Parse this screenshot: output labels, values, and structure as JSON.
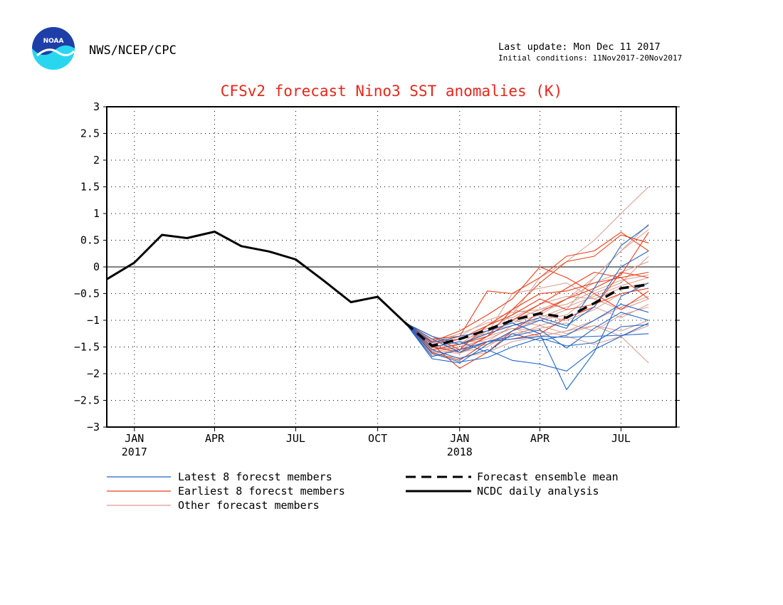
{
  "header": {
    "agency": "NWS/NCEP/CPC",
    "logo_text": "NOAA",
    "last_update": "Last update: Mon Dec 11 2017",
    "initial_conditions": "Initial conditions: 11Nov2017-20Nov2017"
  },
  "colors": {
    "title": "#e8251b",
    "latest": "#2166c8",
    "earliest": "#e8401b",
    "other": "#d99a8c",
    "analysis": "#000000",
    "ensemble_mean": "#000000",
    "grid": "#000000"
  },
  "chart_data": {
    "type": "line",
    "title": "CFSv2 forecast Nino3 SST anomalies (K)",
    "xlabel": "",
    "ylabel": "",
    "ylim": [
      -3,
      3
    ],
    "yticks": [
      3,
      2.5,
      2,
      1.5,
      1,
      0.5,
      0,
      -0.5,
      -1,
      -1.5,
      -2,
      -2.5,
      -3
    ],
    "ytick_labels": [
      "3",
      "2.5",
      "2",
      "1.5",
      "1",
      "0.5",
      "0",
      "−0.5",
      "−1",
      "−1.5",
      "−2",
      "−2.5",
      "−3"
    ],
    "xlim": [
      "2016-12-15",
      "2018-09-15"
    ],
    "xticks": [
      {
        "date": "2017-01-15",
        "label": "JAN",
        "year": "2017"
      },
      {
        "date": "2017-04-15",
        "label": "APR",
        "year": ""
      },
      {
        "date": "2017-07-15",
        "label": "JUL",
        "year": ""
      },
      {
        "date": "2017-10-15",
        "label": "OCT",
        "year": ""
      },
      {
        "date": "2018-01-15",
        "label": "JAN",
        "year": "2018"
      },
      {
        "date": "2018-04-15",
        "label": "APR",
        "year": ""
      },
      {
        "date": "2018-07-15",
        "label": "JUL",
        "year": ""
      }
    ],
    "grid": true,
    "zero_line": true,
    "legend": {
      "placement": "bottom",
      "entries": [
        {
          "label": "Latest 8 forecst members",
          "style": "latest"
        },
        {
          "label": "Earliest 8 forecst members",
          "style": "earliest"
        },
        {
          "label": "Other forecast members",
          "style": "other"
        },
        {
          "label": "Forecast ensemble mean",
          "style": "ensemble_mean"
        },
        {
          "label": "NCDC daily analysis",
          "style": "analysis"
        }
      ]
    },
    "forecast_dates": [
      "2017-11-15",
      "2017-12-15",
      "2018-01-15",
      "2018-02-15",
      "2018-03-15",
      "2018-04-15",
      "2018-05-15",
      "2018-06-15",
      "2018-07-15",
      "2018-08-15"
    ],
    "series": [
      {
        "name": "NCDC daily analysis",
        "style": "analysis",
        "x": [
          "2016-12-15",
          "2017-01-15",
          "2017-02-15",
          "2017-03-15",
          "2017-04-15",
          "2017-05-15",
          "2017-06-15",
          "2017-07-15",
          "2017-08-15",
          "2017-09-15",
          "2017-10-15",
          "2017-11-15"
        ],
        "y": [
          -0.23,
          0.08,
          0.6,
          0.54,
          0.66,
          0.39,
          0.29,
          0.14,
          -0.25,
          -0.66,
          -0.56,
          -1.05
        ]
      },
      {
        "name": "Forecast ensemble mean",
        "style": "ensemble_mean",
        "x": [
          "2017-11-15",
          "2017-12-15",
          "2018-01-15",
          "2018-02-15",
          "2018-03-15",
          "2018-04-15",
          "2018-05-15",
          "2018-06-15",
          "2018-07-15",
          "2018-08-15"
        ],
        "y": [
          -1.05,
          -1.48,
          -1.35,
          -1.18,
          -1.0,
          -0.87,
          -0.95,
          -0.68,
          -0.4,
          -0.33
        ]
      },
      {
        "name": "Latest 8 forecst members",
        "style": "latest",
        "members": [
          [
            -1.05,
            -1.68,
            -1.55,
            -1.4,
            -1.35,
            -1.3,
            -1.32,
            -1.3,
            -1.28,
            -1.25
          ],
          [
            -1.05,
            -1.55,
            -1.72,
            -1.55,
            -1.75,
            -1.82,
            -1.95,
            -1.55,
            -1.3,
            -1.05
          ],
          [
            -1.05,
            -1.42,
            -1.3,
            -1.2,
            -1.05,
            -1.25,
            -2.3,
            -1.6,
            -0.55,
            -0.3
          ],
          [
            -1.05,
            -1.35,
            -1.6,
            -1.4,
            -1.3,
            -1.18,
            -1.52,
            -1.15,
            -0.85,
            -1.0
          ],
          [
            -1.05,
            -1.72,
            -1.8,
            -1.45,
            -1.2,
            -1.0,
            -1.15,
            -0.4,
            0.4,
            0.78
          ],
          [
            -1.05,
            -1.3,
            -1.45,
            -1.25,
            -1.1,
            -0.95,
            -1.1,
            -0.75,
            0.0,
            0.3
          ],
          [
            -1.05,
            -1.5,
            -1.4,
            -1.6,
            -1.25,
            -1.38,
            -1.28,
            -1.0,
            -0.7,
            -0.85
          ],
          [
            -1.05,
            -1.62,
            -1.78,
            -1.7,
            -1.5,
            -1.33,
            -1.48,
            -1.42,
            -1.12,
            -1.08
          ]
        ]
      },
      {
        "name": "Earliest 8 forecst members",
        "style": "earliest",
        "members": [
          [
            -1.05,
            -1.3,
            -1.55,
            -1.1,
            -0.8,
            -0.3,
            0.1,
            0.2,
            0.6,
            0.45
          ],
          [
            -1.05,
            -1.45,
            -1.9,
            -1.6,
            -1.2,
            -0.85,
            -0.6,
            -0.4,
            -0.15,
            0.65
          ],
          [
            -1.05,
            -1.35,
            -1.3,
            -0.45,
            -0.5,
            -0.2,
            0.2,
            0.3,
            0.65,
            0.3
          ],
          [
            -1.05,
            -1.55,
            -1.45,
            -1.3,
            -1.0,
            -0.7,
            -0.4,
            -0.1,
            -0.2,
            -0.6
          ],
          [
            -1.05,
            -1.6,
            -1.75,
            -1.4,
            -1.35,
            -1.25,
            -0.95,
            -0.75,
            -0.1,
            -0.2
          ],
          [
            -1.05,
            -1.4,
            -1.2,
            -0.9,
            -0.6,
            0.0,
            -0.2,
            -0.5,
            -0.8,
            -0.45
          ],
          [
            -1.05,
            -1.5,
            -1.6,
            -1.3,
            -0.8,
            -0.5,
            -0.45,
            -0.3,
            -0.2,
            -0.1
          ],
          [
            -1.05,
            -1.45,
            -1.35,
            -1.1,
            -0.9,
            -0.6,
            -0.8,
            -0.7,
            -0.5,
            -0.4
          ]
        ]
      },
      {
        "name": "Other forecast members",
        "style": "other",
        "members": [
          [
            -1.05,
            -1.35,
            -1.3,
            -1.2,
            -0.9,
            -0.2,
            0.1,
            0.5,
            1.0,
            1.5
          ],
          [
            -1.05,
            -1.5,
            -1.55,
            -1.3,
            -1.0,
            -0.8,
            -0.6,
            -0.2,
            0.3,
            0.8
          ],
          [
            -1.05,
            -1.6,
            -1.5,
            -1.2,
            -1.1,
            -1.0,
            -0.9,
            -0.5,
            -0.3,
            0.2
          ],
          [
            -1.05,
            -1.4,
            -1.35,
            -1.25,
            -0.5,
            -0.4,
            -0.3,
            -0.6,
            -0.8,
            -0.6
          ],
          [
            -1.05,
            -1.65,
            -1.7,
            -1.6,
            -1.4,
            -1.3,
            -1.2,
            -1.1,
            -1.3,
            -1.8
          ],
          [
            -1.05,
            -1.5,
            -1.45,
            -1.1,
            -0.8,
            -0.9,
            -1.0,
            -0.8,
            -0.5,
            -0.4
          ],
          [
            -1.05,
            -1.55,
            -1.5,
            -1.35,
            -1.15,
            -1.3,
            -1.2,
            -1.0,
            -0.75,
            -0.55
          ],
          [
            -1.05,
            -1.45,
            -1.3,
            -1.0,
            -0.85,
            -0.8,
            -0.7,
            -0.45,
            -0.25,
            -0.15
          ],
          [
            -1.05,
            -1.58,
            -1.62,
            -1.4,
            -1.1,
            -1.0,
            -0.8,
            -0.2,
            0.3,
            0.7
          ],
          [
            -1.05,
            -1.42,
            -1.25,
            -1.05,
            -0.95,
            -0.7,
            -0.55,
            -0.6,
            -0.4,
            -0.3
          ],
          [
            -1.05,
            -1.5,
            -1.4,
            -1.4,
            -1.25,
            -1.15,
            -1.05,
            -1.2,
            -0.9,
            -0.75
          ],
          [
            -1.05,
            -1.62,
            -1.55,
            -1.45,
            -1.3,
            -1.1,
            -1.25,
            -1.1,
            -1.2,
            -1.0
          ],
          [
            -1.05,
            -1.38,
            -1.45,
            -1.2,
            -1.05,
            -0.9,
            -0.6,
            -0.3,
            -0.1,
            0.1
          ],
          [
            -1.05,
            -1.52,
            -1.35,
            -1.15,
            -1.0,
            -1.1,
            -0.95,
            -0.75,
            -0.95,
            -0.7
          ],
          [
            -1.05,
            -1.48,
            -1.6,
            -1.5,
            -1.2,
            -0.95,
            -0.75,
            -0.55,
            -0.35,
            -0.2
          ],
          [
            -1.05,
            -1.55,
            -1.45,
            -1.3,
            -1.15,
            -1.2,
            -1.3,
            -1.45,
            -1.3,
            -1.1
          ]
        ]
      }
    ]
  }
}
